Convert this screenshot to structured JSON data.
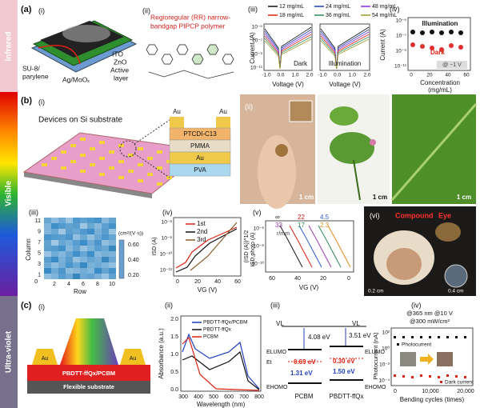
{
  "sidebar": {
    "infrared": "Infrared",
    "visible": "Visible",
    "ultraviolet": "Ultra-violet"
  },
  "a": {
    "label": "(a)",
    "i": {
      "label": "(i)",
      "su8": "SU-8/",
      "parylene": "parylene",
      "electrode": "Ag/MoOₓ",
      "ito": "ITO",
      "zno": "ZnO",
      "active": "Active",
      "layer": "layer"
    },
    "ii": {
      "label": "(ii)",
      "title": [
        "Regioregular (RR) narrow-",
        "bandgap PIPCP polymer"
      ]
    },
    "iii": {
      "label": "(iii)",
      "legend": [
        "12 mg/mL",
        "24 mg/mL",
        "48 mg/mL",
        "18 mg/mL",
        "36 mg/mL",
        "54 mg/mL"
      ],
      "y_label": "Current (A)",
      "y_ticks": [
        "10⁻⁵",
        "10⁻⁷",
        "10⁻⁹",
        "10⁻¹¹"
      ],
      "x_ticks": [
        "-1.0",
        "0.0",
        "1.0",
        "2.0"
      ],
      "x_label": "Voltage (V)",
      "dark": "Dark",
      "illumination": "Illumination"
    },
    "iv": {
      "label": "(iv)",
      "y_label": "Current (A)",
      "y_ticks": [
        "10⁻⁵",
        "10⁻⁷",
        "10⁻⁹",
        "10⁻¹¹"
      ],
      "x_ticks": [
        "0",
        "20",
        "40",
        "60"
      ],
      "x_label": "Concentration",
      "x_unit": "(mg/mL)",
      "illumination": "Illumination",
      "dark": "Dark",
      "bias": "@ −1 V"
    }
  },
  "b": {
    "label": "(b)",
    "i": {
      "label": "(i)",
      "title": "Devices on Si substrate",
      "top_electrodes": [
        "Au",
        "Au"
      ],
      "layers": [
        "PTCDI-C13",
        "PMMA",
        "Au",
        "PVA"
      ]
    },
    "ii": {
      "label": "(ii)",
      "scale": [
        "1 cm",
        "1 cm",
        "1 cm"
      ]
    },
    "iii": {
      "label": "(iii)",
      "y_label": "Column",
      "y_ticks": [
        "11",
        "9",
        "7",
        "5",
        "3",
        "1"
      ],
      "origin": "0",
      "x_label": "Row",
      "x_ticks": [
        "2",
        "4",
        "6",
        "8",
        "10"
      ],
      "unit": "(cm²/(V·s))",
      "bar_ticks": [
        "0.60",
        "0.40",
        "0.20"
      ]
    },
    "iv": {
      "label": "(iv)",
      "legend": [
        "1st",
        "2nd",
        "3rd"
      ],
      "y_label": "ISD (A)",
      "y2_label": "(ISD (A))^1/2",
      "y_ticks": [
        "10⁻⁶",
        "10⁻⁸",
        "10⁻¹⁰",
        "10⁻¹²"
      ],
      "x_ticks": [
        "0",
        "20",
        "40",
        "60"
      ],
      "x_label": "VG (V)"
    },
    "v": {
      "label": "(v)",
      "legend": [
        "∞",
        "22",
        "4.5",
        "33",
        "17",
        "2.3"
      ],
      "unit": "r/mm",
      "y_label": "ISD,photo (A)",
      "y_ticks": [
        "10⁻⁶",
        "10⁻⁸",
        "10⁻¹⁰"
      ],
      "x_ticks": [
        "60",
        "40",
        "20",
        "0"
      ],
      "x_label": "VG (V)"
    },
    "vi": {
      "label": "(vi)",
      "title": [
        "Compound",
        "Eye"
      ],
      "scale": [
        "0.2 cm",
        "0.4 cm"
      ]
    }
  },
  "c": {
    "label": "(c)",
    "i": {
      "label": "(i)",
      "electrodes": [
        "Au",
        "Au"
      ],
      "active": "PBDTT-ffQx/PCBM",
      "substrate": "Flexible substrate"
    },
    "ii": {
      "label": "(ii)",
      "legend": [
        "PBDTT-ffQx/PCBM",
        "PBDTT-ffQx",
        "PCBM"
      ],
      "y_label": "Absorbance (a.u.)",
      "y_ticks": [
        "2.0",
        "1.5",
        "1.0",
        "0.5",
        "0.0"
      ],
      "x_ticks": [
        "300",
        "400",
        "500",
        "600",
        "700",
        "800"
      ],
      "x_label": "Wavelength (nm)"
    },
    "iii": {
      "label": "(iii)",
      "vl": [
        "VL",
        "VL"
      ],
      "gaps": [
        "4.08 eV",
        "3.51 eV"
      ],
      "traps": [
        "0.69 eV",
        "0.30 eV"
      ],
      "homo_gaps": [
        "1.31 eV",
        "1.50 eV"
      ],
      "lumo": "ELUMO",
      "trap": "Et",
      "homo": "EHOMO",
      "materials": [
        "PCBM",
        "PBDTT-ffQx"
      ]
    },
    "iv": {
      "label": "(iv)",
      "conditions": [
        "@365 nm @10 V",
        "@300 mW/cm²"
      ],
      "legend": [
        "Photocurrent",
        "Dark current"
      ],
      "y_label": "Photocurrent (nA)",
      "y_ticks": [
        "10²",
        "10⁰",
        "10⁻²",
        "10⁻⁴"
      ],
      "x_ticks": [
        "0",
        "10,000",
        "20,000"
      ],
      "x_label": "Bending cycles (times)"
    }
  }
}
